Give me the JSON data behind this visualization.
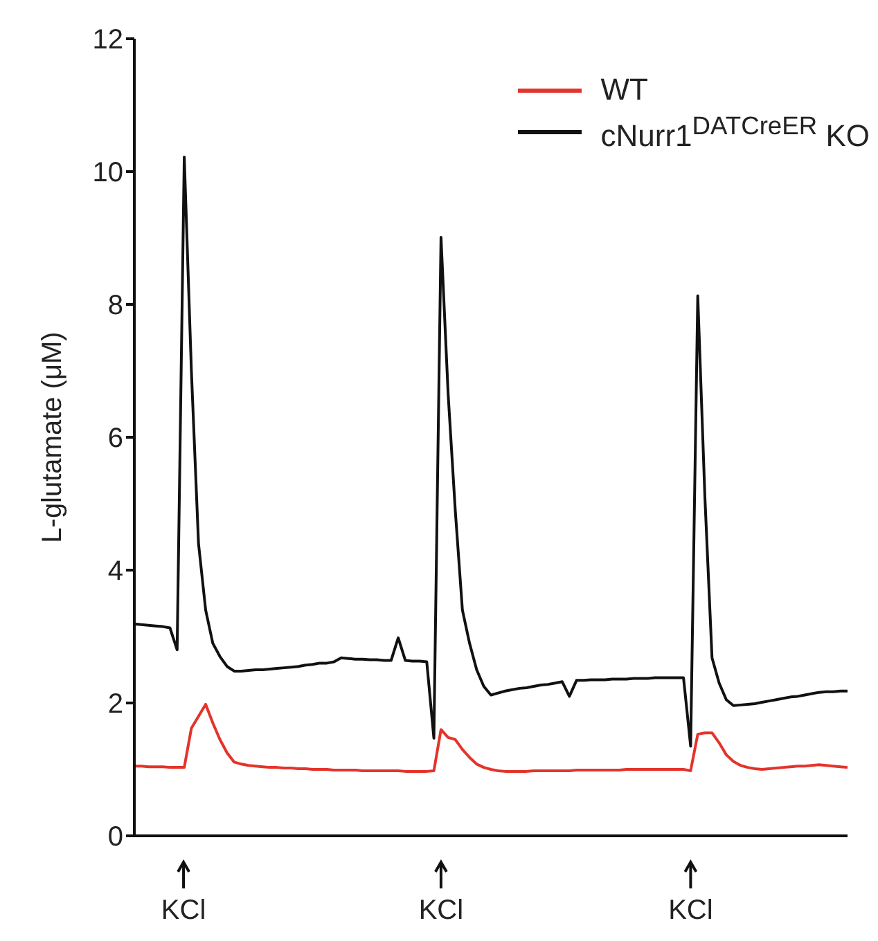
{
  "chart_data": {
    "type": "line",
    "ylabel": "L-glutamate (μM)",
    "ylim": [
      0,
      12
    ],
    "yticks": [
      0,
      2,
      4,
      6,
      8,
      10,
      12
    ],
    "tick_labels": "y",
    "legend": "top right",
    "marker": "none",
    "line_style": "solid",
    "grid": false,
    "categories": [
      null,
      null,
      null,
      null,
      null,
      null,
      null,
      null,
      null,
      null,
      null,
      null,
      null,
      null,
      null,
      null,
      null,
      null,
      null,
      null,
      null,
      null,
      null,
      null,
      null,
      null,
      null,
      null,
      null,
      null,
      null,
      null,
      null,
      null,
      null,
      null,
      null,
      null,
      null,
      null,
      null,
      null,
      null,
      null,
      null,
      null,
      null,
      null,
      null,
      null,
      null,
      null,
      null,
      null,
      null,
      null,
      null,
      null,
      null,
      null,
      null,
      null,
      null,
      null,
      null,
      null,
      null,
      null,
      null,
      null,
      null,
      null,
      null,
      null,
      null,
      null,
      null,
      null,
      null,
      null,
      null,
      null,
      null,
      null,
      null,
      null,
      null,
      null,
      null,
      null,
      null,
      null,
      null,
      null,
      null,
      null,
      null,
      null,
      null,
      null,
      null
    ],
    "series": [
      {
        "name": "WT",
        "color": "#e3342b",
        "values": [
          1.05,
          1.05,
          1.04,
          1.04,
          1.04,
          1.03,
          1.03,
          1.03,
          1.62,
          1.8,
          1.98,
          1.7,
          1.45,
          1.25,
          1.11,
          1.08,
          1.06,
          1.05,
          1.04,
          1.03,
          1.03,
          1.02,
          1.02,
          1.01,
          1.01,
          1.0,
          1.0,
          1.0,
          0.99,
          0.99,
          0.99,
          0.99,
          0.98,
          0.98,
          0.98,
          0.98,
          0.98,
          0.98,
          0.97,
          0.97,
          0.97,
          0.97,
          0.98,
          1.6,
          1.48,
          1.45,
          1.3,
          1.18,
          1.08,
          1.03,
          1.0,
          0.98,
          0.97,
          0.97,
          0.97,
          0.97,
          0.98,
          0.98,
          0.98,
          0.98,
          0.98,
          0.98,
          0.99,
          0.99,
          0.99,
          0.99,
          0.99,
          0.99,
          0.99,
          1.0,
          1.0,
          1.0,
          1.0,
          1.0,
          1.0,
          1.0,
          1.0,
          1.0,
          0.98,
          1.53,
          1.55,
          1.55,
          1.4,
          1.22,
          1.12,
          1.06,
          1.03,
          1.01,
          1.0,
          1.01,
          1.02,
          1.03,
          1.04,
          1.05,
          1.05,
          1.06,
          1.07,
          1.06,
          1.05,
          1.04,
          1.03
        ]
      },
      {
        "name": "cNurr1$^{DATCreER}$ KO",
        "color": "#111111",
        "values": [
          3.19,
          3.18,
          3.17,
          3.16,
          3.15,
          3.13,
          2.8,
          10.22,
          7.0,
          4.4,
          3.4,
          2.9,
          2.7,
          2.55,
          2.48,
          2.48,
          2.49,
          2.5,
          2.5,
          2.51,
          2.52,
          2.53,
          2.54,
          2.55,
          2.57,
          2.58,
          2.6,
          2.6,
          2.62,
          2.68,
          2.67,
          2.66,
          2.66,
          2.65,
          2.65,
          2.64,
          2.64,
          2.98,
          2.64,
          2.63,
          2.63,
          2.62,
          1.47,
          9.01,
          6.65,
          4.9,
          3.4,
          2.9,
          2.5,
          2.25,
          2.12,
          2.15,
          2.18,
          2.2,
          2.22,
          2.23,
          2.25,
          2.27,
          2.28,
          2.3,
          2.32,
          2.1,
          2.34,
          2.34,
          2.35,
          2.35,
          2.35,
          2.36,
          2.36,
          2.36,
          2.37,
          2.37,
          2.37,
          2.38,
          2.38,
          2.38,
          2.38,
          2.38,
          1.35,
          8.13,
          5.1,
          2.68,
          2.3,
          2.05,
          1.96,
          1.97,
          1.98,
          1.99,
          2.01,
          2.03,
          2.05,
          2.07,
          2.09,
          2.1,
          2.12,
          2.14,
          2.16,
          2.17,
          2.17,
          2.18,
          2.18
        ]
      }
    ],
    "annotations": [
      "KCl",
      "KCl",
      "KCl"
    ]
  }
}
